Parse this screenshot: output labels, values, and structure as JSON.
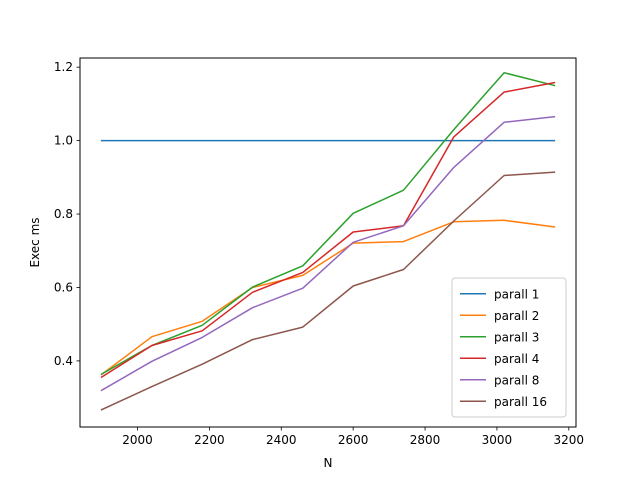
{
  "chart_data": {
    "type": "line",
    "title": "",
    "xlabel": "N",
    "ylabel": "Exec ms",
    "xlim": [
      1840,
      3220
    ],
    "ylim": [
      0.22,
      1.225
    ],
    "xticks": [
      2000,
      2200,
      2400,
      2600,
      2800,
      3000,
      3200
    ],
    "yticks": [
      0.4,
      0.6,
      0.8,
      1.0,
      1.2
    ],
    "xtick_labels": [
      "2000",
      "2200",
      "2400",
      "2600",
      "2800",
      "3000",
      "3200"
    ],
    "ytick_labels": [
      "0.4",
      "0.6",
      "0.8",
      "1.0",
      "1.2"
    ],
    "grid": false,
    "legend_position": "lower-right",
    "x": [
      1900,
      2040,
      2180,
      2320,
      2460,
      2600,
      2740,
      2880,
      3020,
      3160
    ],
    "series": [
      {
        "name": "parall 1",
        "color": "#1f77b4",
        "values": [
          1.0,
          1.0,
          1.0,
          1.0,
          1.0,
          1.0,
          1.0,
          1.0,
          1.0,
          1.0
        ]
      },
      {
        "name": "parall 2",
        "color": "#ff7f0e",
        "values": [
          0.363,
          0.466,
          0.508,
          0.6,
          0.633,
          0.721,
          0.725,
          0.779,
          0.783,
          0.765
        ]
      },
      {
        "name": "parall 3",
        "color": "#2ca02c",
        "values": [
          0.364,
          0.442,
          0.497,
          0.601,
          0.659,
          0.802,
          0.865,
          1.03,
          1.185,
          1.15
        ]
      },
      {
        "name": "parall 4",
        "color": "#d62728",
        "values": [
          0.356,
          0.442,
          0.482,
          0.587,
          0.641,
          0.751,
          0.768,
          1.01,
          1.132,
          1.158
        ]
      },
      {
        "name": "parall 8",
        "color": "#9467bd",
        "values": [
          0.32,
          0.399,
          0.464,
          0.545,
          0.598,
          0.723,
          0.768,
          0.927,
          1.05,
          1.065
        ]
      },
      {
        "name": "parall 16",
        "color": "#8c564b",
        "values": [
          0.267,
          0.33,
          0.391,
          0.458,
          0.492,
          0.604,
          0.649,
          0.781,
          0.905,
          0.914
        ]
      }
    ]
  }
}
